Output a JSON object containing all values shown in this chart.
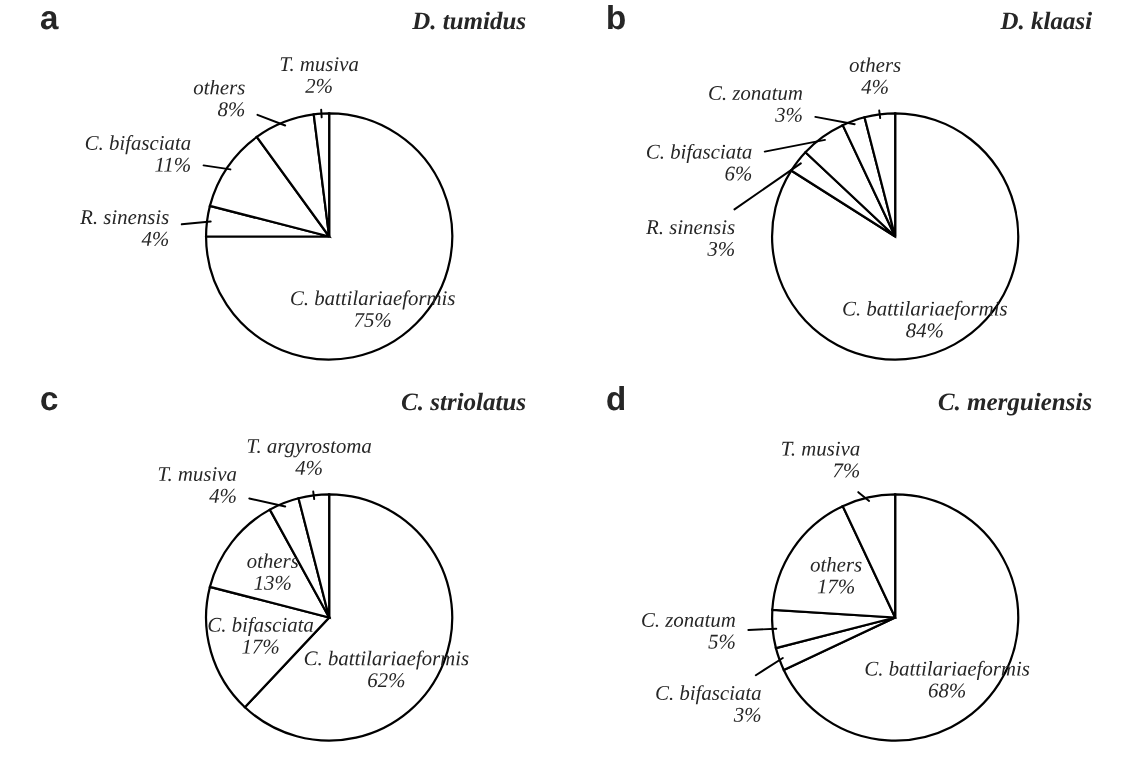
{
  "chart_data": [
    {
      "type": "pie",
      "title": "a",
      "subtitle": "D. tumidus",
      "categories": [
        "C. battilariaeformis",
        "R. sinensis",
        "C. bifasciata",
        "others",
        "T. musiva"
      ],
      "values": [
        75,
        4,
        11,
        8,
        2
      ],
      "value_labels": [
        "75%",
        "4%",
        "11%",
        "8%",
        "2%"
      ],
      "colors": [
        "#ffffff",
        "#ffffff",
        "#ffffff",
        "#ffffff",
        "#ffffff"
      ]
    },
    {
      "type": "pie",
      "title": "b",
      "subtitle": "D. klaasi",
      "categories": [
        "C. battilariaeformis",
        "R. sinensis",
        "C. bifasciata",
        "C. zonatum",
        "others"
      ],
      "values": [
        84,
        3,
        6,
        3,
        4
      ],
      "value_labels": [
        "84%",
        "3%",
        "6%",
        "3%",
        "4%"
      ],
      "colors": [
        "#ffffff",
        "#ffffff",
        "#ffffff",
        "#ffffff",
        "#ffffff"
      ]
    },
    {
      "type": "pie",
      "title": "c",
      "subtitle": "C. striolatus",
      "categories": [
        "C. battilariaeformis",
        "C. bifasciata",
        "others",
        "T. musiva",
        "T. argyrostoma"
      ],
      "values": [
        62,
        17,
        13,
        4,
        4
      ],
      "value_labels": [
        "62%",
        "17%",
        "13%",
        "4%",
        "4%"
      ],
      "colors": [
        "#ffffff",
        "#ffffff",
        "#ffffff",
        "#ffffff",
        "#ffffff"
      ]
    },
    {
      "type": "pie",
      "title": "d",
      "subtitle": "C. merguiensis",
      "categories": [
        "C. battilariaeformis",
        "C. bifasciata",
        "C. zonatum",
        "others",
        "T. musiva"
      ],
      "values": [
        68,
        3,
        5,
        17,
        7
      ],
      "value_labels": [
        "68%",
        "3%",
        "5%",
        "17%",
        "7%"
      ],
      "colors": [
        "#ffffff",
        "#ffffff",
        "#ffffff",
        "#ffffff",
        "#ffffff"
      ]
    }
  ]
}
